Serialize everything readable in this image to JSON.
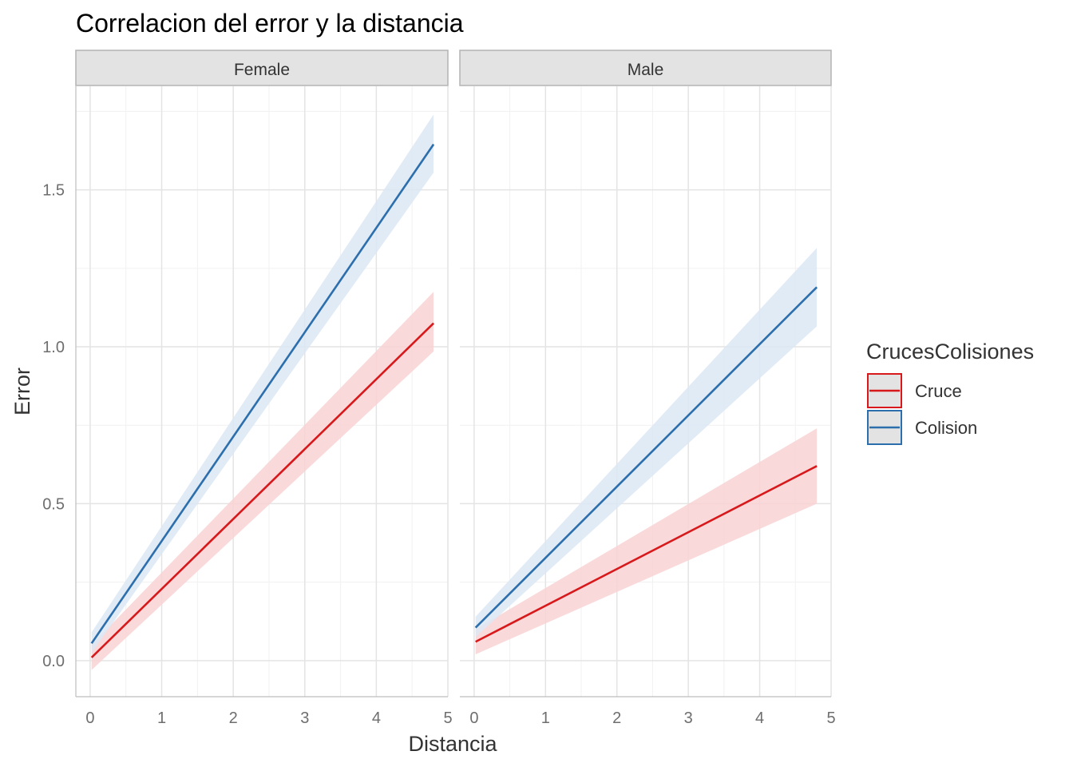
{
  "chart_data": {
    "type": "line",
    "title": "Correlacion del error y la distancia",
    "xlabel": "Distancia",
    "ylabel": "Error",
    "xlim": [
      -0.2,
      5
    ],
    "ylim": [
      -0.115,
      1.83
    ],
    "xticks": [
      "0",
      "1",
      "2",
      "3",
      "4",
      "5"
    ],
    "yticks": [
      "0.0",
      "0.5",
      "1.0",
      "1.5"
    ],
    "grid": true,
    "legend": {
      "title": "CrucesColisiones",
      "position": "right",
      "entries": [
        "Cruce",
        "Colision"
      ]
    },
    "colors": {
      "Cruce": "#d7191c",
      "Colision": "#2c6fac",
      "Cruce_band": "#f9d2d4",
      "Colision_band": "#dce8f4"
    },
    "panels": [
      {
        "name": "Female",
        "series": [
          {
            "name": "Cruce",
            "x": [
              0.02,
              4.8
            ],
            "y": [
              0.01,
              1.075
            ],
            "lower": [
              -0.03,
              0.985
            ],
            "upper": [
              0.05,
              1.175
            ]
          },
          {
            "name": "Colision",
            "x": [
              0.02,
              4.8
            ],
            "y": [
              0.055,
              1.645
            ],
            "lower": [
              0.025,
              1.555
            ],
            "upper": [
              0.09,
              1.74
            ]
          }
        ]
      },
      {
        "name": "Male",
        "series": [
          {
            "name": "Cruce",
            "x": [
              0.02,
              4.8
            ],
            "y": [
              0.06,
              0.62
            ],
            "lower": [
              0.02,
              0.5
            ],
            "upper": [
              0.1,
              0.74
            ]
          },
          {
            "name": "Colision",
            "x": [
              0.02,
              4.8
            ],
            "y": [
              0.105,
              1.19
            ],
            "lower": [
              0.075,
              1.065
            ],
            "upper": [
              0.14,
              1.315
            ]
          }
        ]
      }
    ]
  }
}
